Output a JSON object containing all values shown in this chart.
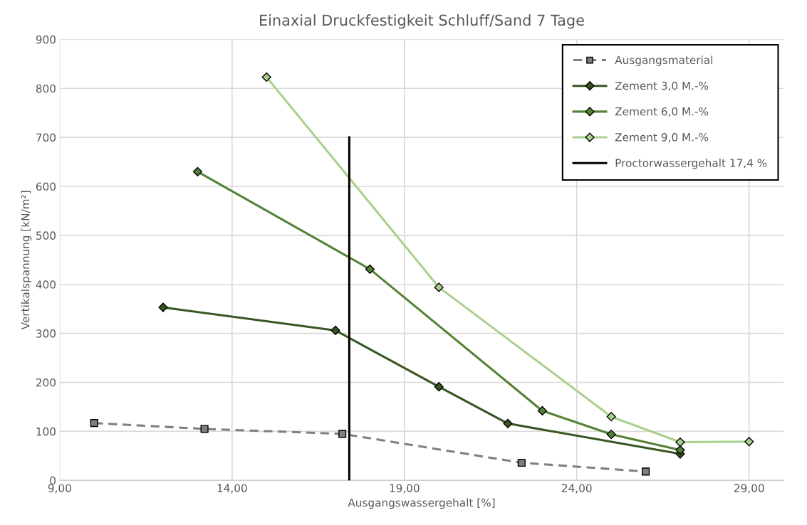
{
  "chart_data": {
    "type": "line",
    "title": "Einaxial Druckfestigkeit Schluff/Sand 7 Tage",
    "xlabel": "Ausgangswassergehalt [%]",
    "ylabel": "Vertikalspannung [kN/m²]",
    "xlim": [
      9,
      30
    ],
    "xticks": [
      {
        "value": 9,
        "label": "9,00"
      },
      {
        "value": 14,
        "label": "14,00"
      },
      {
        "value": 19,
        "label": "19,00"
      },
      {
        "value": 24,
        "label": "24,00"
      },
      {
        "value": 29,
        "label": "29,00"
      }
    ],
    "ylim": [
      0,
      900
    ],
    "yticks": [
      0,
      100,
      200,
      300,
      400,
      500,
      600,
      700,
      800,
      900
    ],
    "grid": true,
    "legend": "top right",
    "series": [
      {
        "name": "Ausgangsmaterial",
        "color": "#7f7f7f",
        "marker": "square",
        "line_style": "dashed",
        "x": [
          10.0,
          13.2,
          17.2,
          22.4,
          26.0
        ],
        "values": [
          117,
          105,
          95,
          36,
          18
        ]
      },
      {
        "name": "Zement 3,0 M.-%",
        "color": "#375623",
        "marker": "diamond",
        "line_style": "solid",
        "x": [
          12.0,
          17.0,
          20.0,
          22.0,
          27.0
        ],
        "values": [
          353,
          306,
          191,
          116,
          54
        ]
      },
      {
        "name": "Zement 6,0 M.-%",
        "color": "#548235",
        "marker": "diamond",
        "line_style": "solid",
        "x": [
          13.0,
          18.0,
          23.0,
          25.0,
          27.0
        ],
        "values": [
          630,
          431,
          142,
          94,
          62
        ]
      },
      {
        "name": "Zement 9,0 M.-%",
        "color": "#a9d18e",
        "marker": "diamond",
        "line_style": "solid",
        "x": [
          15.0,
          20.0,
          25.0,
          27.0,
          29.0
        ],
        "values": [
          823,
          394,
          130,
          78,
          79
        ]
      },
      {
        "name": "Proctorwassergehalt 17,4 %",
        "color": "#000000",
        "marker": "none",
        "line_style": "solid",
        "x": [
          17.4,
          17.4
        ],
        "values": [
          0,
          700
        ]
      }
    ]
  }
}
